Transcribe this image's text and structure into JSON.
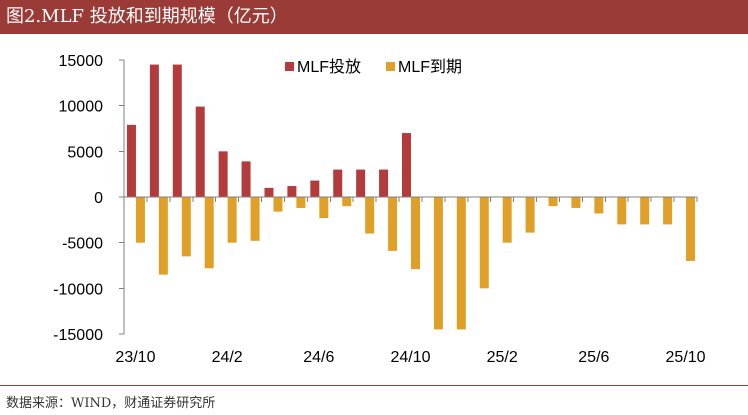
{
  "header": {
    "title": "图2.MLF 投放和到期规模（亿元）"
  },
  "footer": {
    "source": "数据来源：WIND，财通证券研究所"
  },
  "chart_data": {
    "type": "bar",
    "title": "",
    "xlabel": "",
    "ylabel": "",
    "ylim": [
      -15000,
      15000
    ],
    "y_ticks": [
      "15000",
      "10000",
      "5000",
      "0",
      "-5000",
      "-10000",
      "-15000"
    ],
    "x_tick_labels": [
      {
        "label": "23/10",
        "index": 0
      },
      {
        "label": "24/2",
        "index": 4
      },
      {
        "label": "24/6",
        "index": 8
      },
      {
        "label": "24/10",
        "index": 12
      },
      {
        "label": "25/2",
        "index": 16
      },
      {
        "label": "25/6",
        "index": 20
      },
      {
        "label": "25/10",
        "index": 24
      }
    ],
    "legend_position": "top",
    "series": [
      {
        "name": "MLF投放",
        "color": "#b33b3b",
        "values": [
          7900,
          14500,
          14500,
          9900,
          5000,
          3900,
          1000,
          1200,
          1800,
          3000,
          3000,
          3000,
          7000,
          0,
          0,
          0,
          0,
          0,
          0,
          0,
          0,
          0,
          0,
          0,
          0
        ]
      },
      {
        "name": "MLF到期",
        "color": "#e0a028",
        "values": [
          -5000,
          -8500,
          -6500,
          -7800,
          -5000,
          -4800,
          -1600,
          -1200,
          -2300,
          -1000,
          -4000,
          -5900,
          -7900,
          -14500,
          -14500,
          -10000,
          -5000,
          -3900,
          -1000,
          -1200,
          -1800,
          -3000,
          -3000,
          -3000,
          -7000
        ]
      }
    ]
  }
}
